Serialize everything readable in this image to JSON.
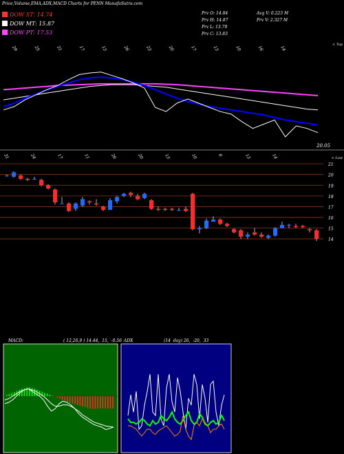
{
  "header": {
    "title": "Price,Volume,EMA,ADX,MACD Charts for PENN  MunafaSutra.com"
  },
  "legend": [
    {
      "label": "DOW ST: 14.74",
      "color": "#ff3333"
    },
    {
      "label": "DOW MT: 15.87",
      "color": "#ffffff"
    },
    {
      "label": "DOW PT: 17.53",
      "color": "#ff44ff"
    }
  ],
  "stats": {
    "col1": [
      "Prv  O: 14.84",
      "Prv  H: 14.87",
      "Prv  L: 13.79",
      "Prv  C: 13.83"
    ],
    "col2": [
      "Avg V: 0.223 M",
      "Prv  V: 2.327 M"
    ]
  },
  "chart_data": [
    {
      "type": "line",
      "name": "ema-panel",
      "top_date_labels": [
        "29",
        "25",
        "21",
        "17",
        "13",
        "26",
        "23",
        "20",
        "17",
        "13",
        "10",
        "16",
        "14"
      ],
      "bottom_date_labels": [
        "31",
        "24",
        "17",
        "11",
        "26",
        "20",
        "13",
        "10",
        "6",
        "13",
        "14"
      ],
      "top_right_label": "< Top",
      "bottom_right_label": "< Low",
      "value_label": "20.05",
      "series": [
        {
          "color": "#ff44ff",
          "values": [
            16.6,
            16.7,
            16.8,
            16.9,
            17.0,
            17.1,
            17.15,
            17.2,
            17.25,
            17.3,
            17.3,
            17.3,
            17.3,
            17.3,
            17.3,
            17.25,
            17.2,
            17.1,
            17.0,
            16.9,
            16.8,
            16.7,
            16.6,
            16.5,
            16.4,
            16.3,
            16.2,
            16.1,
            16.0,
            15.9
          ]
        },
        {
          "color": "#ffffff",
          "values": [
            15.4,
            15.6,
            15.8,
            16.0,
            16.2,
            16.4,
            16.6,
            16.8,
            17.0,
            17.1,
            17.2,
            17.2,
            17.2,
            17.1,
            17.0,
            16.9,
            16.7,
            16.5,
            16.3,
            16.1,
            15.9,
            15.7,
            15.5,
            15.3,
            15.1,
            14.9,
            14.7,
            14.5,
            14.3,
            14.2
          ]
        },
        {
          "color": "#0000ff",
          "values": [
            14.6,
            15.0,
            15.6,
            16.1,
            16.6,
            17.0,
            17.4,
            17.8,
            18.0,
            18.1,
            18.0,
            17.8,
            17.5,
            17.1,
            16.6,
            16.1,
            15.6,
            15.2,
            14.9,
            14.6,
            14.4,
            14.2,
            14.0,
            13.8,
            13.6,
            13.3,
            13.0,
            12.8,
            12.6,
            12.4
          ]
        },
        {
          "color": "#ffffff",
          "values": [
            14.2,
            14.6,
            15.4,
            16.0,
            16.6,
            17.1,
            17.8,
            18.4,
            18.6,
            18.7,
            18.3,
            17.9,
            17.4,
            16.8,
            14.5,
            14.0,
            15.0,
            15.5,
            15.0,
            14.5,
            14.0,
            13.7,
            12.8,
            12.0,
            12.5,
            13.0,
            11.0,
            12.3,
            12.0,
            11.5
          ]
        }
      ]
    },
    {
      "type": "bar",
      "name": "price-panel",
      "price_levels": [
        21,
        20,
        19,
        18,
        17,
        16,
        15,
        14
      ],
      "ylim": [
        13.5,
        21.2
      ],
      "candles": [
        {
          "o": 19.9,
          "h": 20.0,
          "l": 19.8,
          "c": 19.9
        },
        {
          "o": 19.8,
          "h": 20.3,
          "l": 19.7,
          "c": 20.2
        },
        {
          "o": 19.9,
          "h": 20.0,
          "l": 19.5,
          "c": 19.6
        },
        {
          "o": 19.6,
          "h": 19.7,
          "l": 19.4,
          "c": 19.5
        },
        {
          "o": 19.6,
          "h": 19.8,
          "l": 19.5,
          "c": 19.6
        },
        {
          "o": 19.5,
          "h": 19.6,
          "l": 18.9,
          "c": 19.0
        },
        {
          "o": 19.0,
          "h": 19.1,
          "l": 18.6,
          "c": 18.7
        },
        {
          "o": 18.6,
          "h": 18.7,
          "l": 17.2,
          "c": 17.4
        },
        {
          "o": 17.3,
          "h": 17.9,
          "l": 17.3,
          "c": 17.3
        },
        {
          "o": 17.3,
          "h": 17.4,
          "l": 16.5,
          "c": 16.6
        },
        {
          "o": 16.8,
          "h": 17.4,
          "l": 16.6,
          "c": 17.3
        },
        {
          "o": 17.1,
          "h": 17.9,
          "l": 17.0,
          "c": 17.7
        },
        {
          "o": 17.5,
          "h": 17.6,
          "l": 17.2,
          "c": 17.4
        },
        {
          "o": 17.3,
          "h": 17.7,
          "l": 17.1,
          "c": 17.2
        },
        {
          "o": 17.0,
          "h": 17.1,
          "l": 16.6,
          "c": 16.7
        },
        {
          "o": 16.7,
          "h": 17.8,
          "l": 16.7,
          "c": 17.6
        },
        {
          "o": 17.5,
          "h": 18.0,
          "l": 17.3,
          "c": 17.9
        },
        {
          "o": 18.0,
          "h": 18.3,
          "l": 17.9,
          "c": 18.2
        },
        {
          "o": 18.3,
          "h": 18.4,
          "l": 17.9,
          "c": 18.1
        },
        {
          "o": 18.0,
          "h": 18.2,
          "l": 17.6,
          "c": 17.7
        },
        {
          "o": 17.8,
          "h": 18.3,
          "l": 17.7,
          "c": 18.2
        },
        {
          "o": 17.6,
          "h": 17.7,
          "l": 16.7,
          "c": 16.8
        },
        {
          "o": 16.8,
          "h": 17.0,
          "l": 16.6,
          "c": 16.7
        },
        {
          "o": 16.8,
          "h": 16.9,
          "l": 16.6,
          "c": 16.7
        },
        {
          "o": 16.8,
          "h": 16.9,
          "l": 16.6,
          "c": 16.7
        },
        {
          "o": 16.7,
          "h": 16.9,
          "l": 16.6,
          "c": 16.7
        },
        {
          "o": 16.8,
          "h": 17.0,
          "l": 16.5,
          "c": 16.6
        },
        {
          "o": 18.2,
          "h": 18.3,
          "l": 14.8,
          "c": 14.9
        },
        {
          "o": 14.9,
          "h": 15.2,
          "l": 14.5,
          "c": 15.0
        },
        {
          "o": 15.0,
          "h": 15.9,
          "l": 14.9,
          "c": 15.7
        },
        {
          "o": 15.6,
          "h": 16.1,
          "l": 15.6,
          "c": 15.8
        },
        {
          "o": 15.8,
          "h": 15.9,
          "l": 15.3,
          "c": 15.4
        },
        {
          "o": 15.4,
          "h": 15.5,
          "l": 15.1,
          "c": 15.2
        },
        {
          "o": 14.9,
          "h": 15.0,
          "l": 14.5,
          "c": 14.6
        },
        {
          "o": 14.8,
          "h": 14.9,
          "l": 14.0,
          "c": 14.2
        },
        {
          "o": 14.2,
          "h": 14.6,
          "l": 14.0,
          "c": 14.4
        },
        {
          "o": 14.6,
          "h": 15.0,
          "l": 14.3,
          "c": 14.4
        },
        {
          "o": 14.4,
          "h": 14.6,
          "l": 14.1,
          "c": 14.2
        },
        {
          "o": 14.1,
          "h": 14.4,
          "l": 14.0,
          "c": 14.3
        },
        {
          "o": 14.3,
          "h": 15.1,
          "l": 14.2,
          "c": 15.0
        },
        {
          "o": 15.0,
          "h": 15.6,
          "l": 15.0,
          "c": 15.3
        },
        {
          "o": 15.3,
          "h": 15.4,
          "l": 15.0,
          "c": 15.3
        },
        {
          "o": 15.2,
          "h": 15.4,
          "l": 15.0,
          "c": 15.1
        },
        {
          "o": 15.2,
          "h": 15.3,
          "l": 15.0,
          "c": 15.1
        },
        {
          "o": 14.9,
          "h": 15.0,
          "l": 14.6,
          "c": 14.8
        },
        {
          "o": 14.8,
          "h": 14.9,
          "l": 13.8,
          "c": 14.0
        }
      ]
    },
    {
      "type": "bar",
      "name": "macd-panel",
      "title": "MACD:",
      "params": "( 12,26,9 ) 14.44,  15,  -0.56",
      "histogram": [
        0.1,
        0.18,
        0.26,
        0.34,
        0.42,
        0.52,
        0.6,
        0.66,
        0.7,
        0.7,
        0.66,
        0.6,
        0.52,
        0.44,
        0.36,
        0.28,
        0.2,
        0.12,
        0.04,
        -0.04,
        -0.12,
        -0.2,
        -0.28,
        -0.36,
        -0.44,
        -0.52,
        -0.58,
        -0.64,
        -0.7,
        -0.76,
        -0.82,
        -0.88,
        -0.94,
        -1.0,
        -1.02,
        -1.02,
        -1.0,
        -0.98,
        -0.98,
        -0.98,
        -0.98,
        -1.0,
        -1.0
      ],
      "macd_lines": [
        {
          "color": "#ffffff",
          "values": [
            -0.6,
            -0.5,
            -0.3,
            0.0,
            0.3,
            0.5,
            0.6,
            0.4,
            0.2,
            0.0,
            -0.3,
            -0.8,
            -1.2,
            -1.0,
            -0.6,
            -0.4,
            -0.5,
            -0.7,
            -1.0,
            -1.4,
            -1.7,
            -1.9,
            -2.1,
            -2.3,
            -2.4,
            -2.5,
            -2.7,
            -2.6,
            -2.5
          ]
        },
        {
          "color": "#ffffff",
          "values": [
            -0.3,
            -0.2,
            0.0,
            0.2,
            0.4,
            0.5,
            0.6,
            0.5,
            0.4,
            0.2,
            0.0,
            -0.3,
            -0.6,
            -0.8,
            -0.8,
            -0.7,
            -0.7,
            -0.8,
            -1.0,
            -1.2,
            -1.5,
            -1.7,
            -1.9,
            -2.1,
            -2.2,
            -2.3,
            -2.4,
            -2.45,
            -2.5
          ]
        }
      ]
    },
    {
      "type": "line",
      "name": "adx-panel",
      "title": "ADX",
      "params": "(14  day) 26,  -20,  33",
      "series": [
        {
          "color": "#ffffff",
          "values": [
            20,
            32,
            22,
            34,
            12,
            14,
            26,
            34,
            44,
            22,
            20,
            44,
            18,
            14,
            36,
            44,
            28,
            22,
            42,
            34,
            22,
            12,
            30,
            26,
            44,
            38,
            18,
            38,
            30,
            16,
            38,
            40,
            22,
            14,
            26,
            32
          ]
        },
        {
          "color": "#00ff00",
          "values": [
            18,
            16,
            16,
            15,
            16,
            18,
            17,
            15,
            14,
            17,
            15,
            16,
            20,
            18,
            17,
            19,
            22,
            18,
            16,
            15,
            17,
            20,
            22,
            17,
            15,
            16,
            21,
            19,
            15,
            14,
            16,
            17,
            15,
            16,
            20,
            17
          ]
        },
        {
          "color": "#ff8c00",
          "values": [
            14,
            14,
            13,
            12,
            10,
            8,
            10,
            12,
            12,
            10,
            9,
            11,
            12,
            13,
            14,
            12,
            10,
            8,
            9,
            11,
            20,
            12,
            8,
            6,
            14,
            16,
            14,
            18,
            16,
            14,
            10,
            12,
            12,
            14,
            15,
            12
          ]
        }
      ]
    }
  ]
}
